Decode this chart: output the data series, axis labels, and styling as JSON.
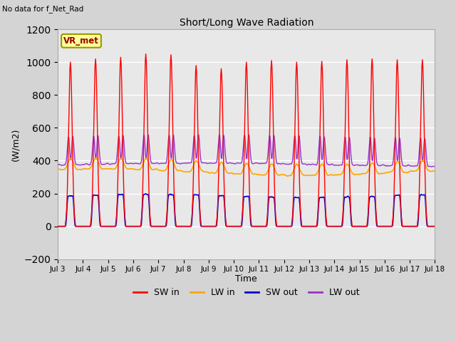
{
  "title": "Short/Long Wave Radiation",
  "xlabel": "Time",
  "ylabel": "(W/m2)",
  "annotation": "No data for f_Net_Rad",
  "legend_label": "VR_met",
  "xlim_days": [
    3,
    18
  ],
  "ylim": [
    -200,
    1200
  ],
  "yticks": [
    -200,
    0,
    200,
    400,
    600,
    800,
    1000,
    1200
  ],
  "xtick_labels": [
    "Jul 3",
    "Jul 4",
    "Jul 5",
    "Jul 6",
    "Jul 7",
    "Jul 8",
    "Jul 9",
    "Jul 10",
    "Jul 11",
    "Jul 12",
    "Jul 13",
    "Jul 14",
    "Jul 15",
    "Jul 16",
    "Jul 17",
    "Jul 18"
  ],
  "line_colors": {
    "SW_in": "#ff0000",
    "LW_in": "#ffa500",
    "SW_out": "#0000cc",
    "LW_out": "#9933cc"
  },
  "legend_entries": [
    "SW in",
    "LW in",
    "SW out",
    "LW out"
  ],
  "fig_facecolor": "#d4d4d4",
  "axes_facecolor": "#e8e8e8",
  "grid_color": "#ffffff",
  "legend_box_color": "#ffff99",
  "legend_box_edgecolor": "#999900",
  "legend_text_color": "#990000"
}
